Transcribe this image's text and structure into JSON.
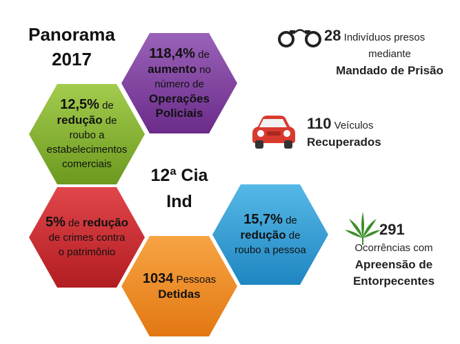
{
  "panorama": {
    "line1": "Panorama",
    "line2": "2017"
  },
  "center": {
    "line1": "12ª Cia",
    "line2": "Ind"
  },
  "hexagons": {
    "purple": {
      "color": "#7a3a99",
      "pct": "118,4%",
      "t1": " de",
      "t2b": "aumento",
      "t2": " no",
      "t3": "número de",
      "t4b": "Operações",
      "t5b": "Policiais"
    },
    "green": {
      "color": "#7fae2c",
      "pct": "12,5%",
      "t1": " de",
      "t2b": "redução",
      "t2": " de",
      "t3": "roubo a",
      "t4": "estabelecimentos",
      "t5": "comerciais"
    },
    "red": {
      "color": "#c9262c",
      "pct": "5%",
      "t1": " de ",
      "t1b": "redução",
      "t2": "de crimes contra",
      "t3": "o patrimônio"
    },
    "blue": {
      "color": "#2a9ad3",
      "pct": "15,7%",
      "t1": " de",
      "t2b": "redução",
      "t2": " de",
      "t3": "roubo a pessoa"
    },
    "orange": {
      "color": "#f1891e",
      "num": "1034",
      "t1": " Pessoas",
      "t2b": "Detidas"
    }
  },
  "stats": {
    "presos": {
      "icon": "handcuffs-icon",
      "num": "28",
      "t1": " Indivíduos presos",
      "t2": "mediante",
      "t3b": "Mandado de Prisão"
    },
    "veiculos": {
      "icon": "car-icon",
      "num": "110",
      "t1": " Veículos",
      "t2b": "Recuperados"
    },
    "entorpecentes": {
      "icon": "cannabis-leaf-icon",
      "num": "291",
      "t1": "Ocorrências com",
      "t2b": "Apreensão de",
      "t3b": "Entorpecentes"
    }
  }
}
